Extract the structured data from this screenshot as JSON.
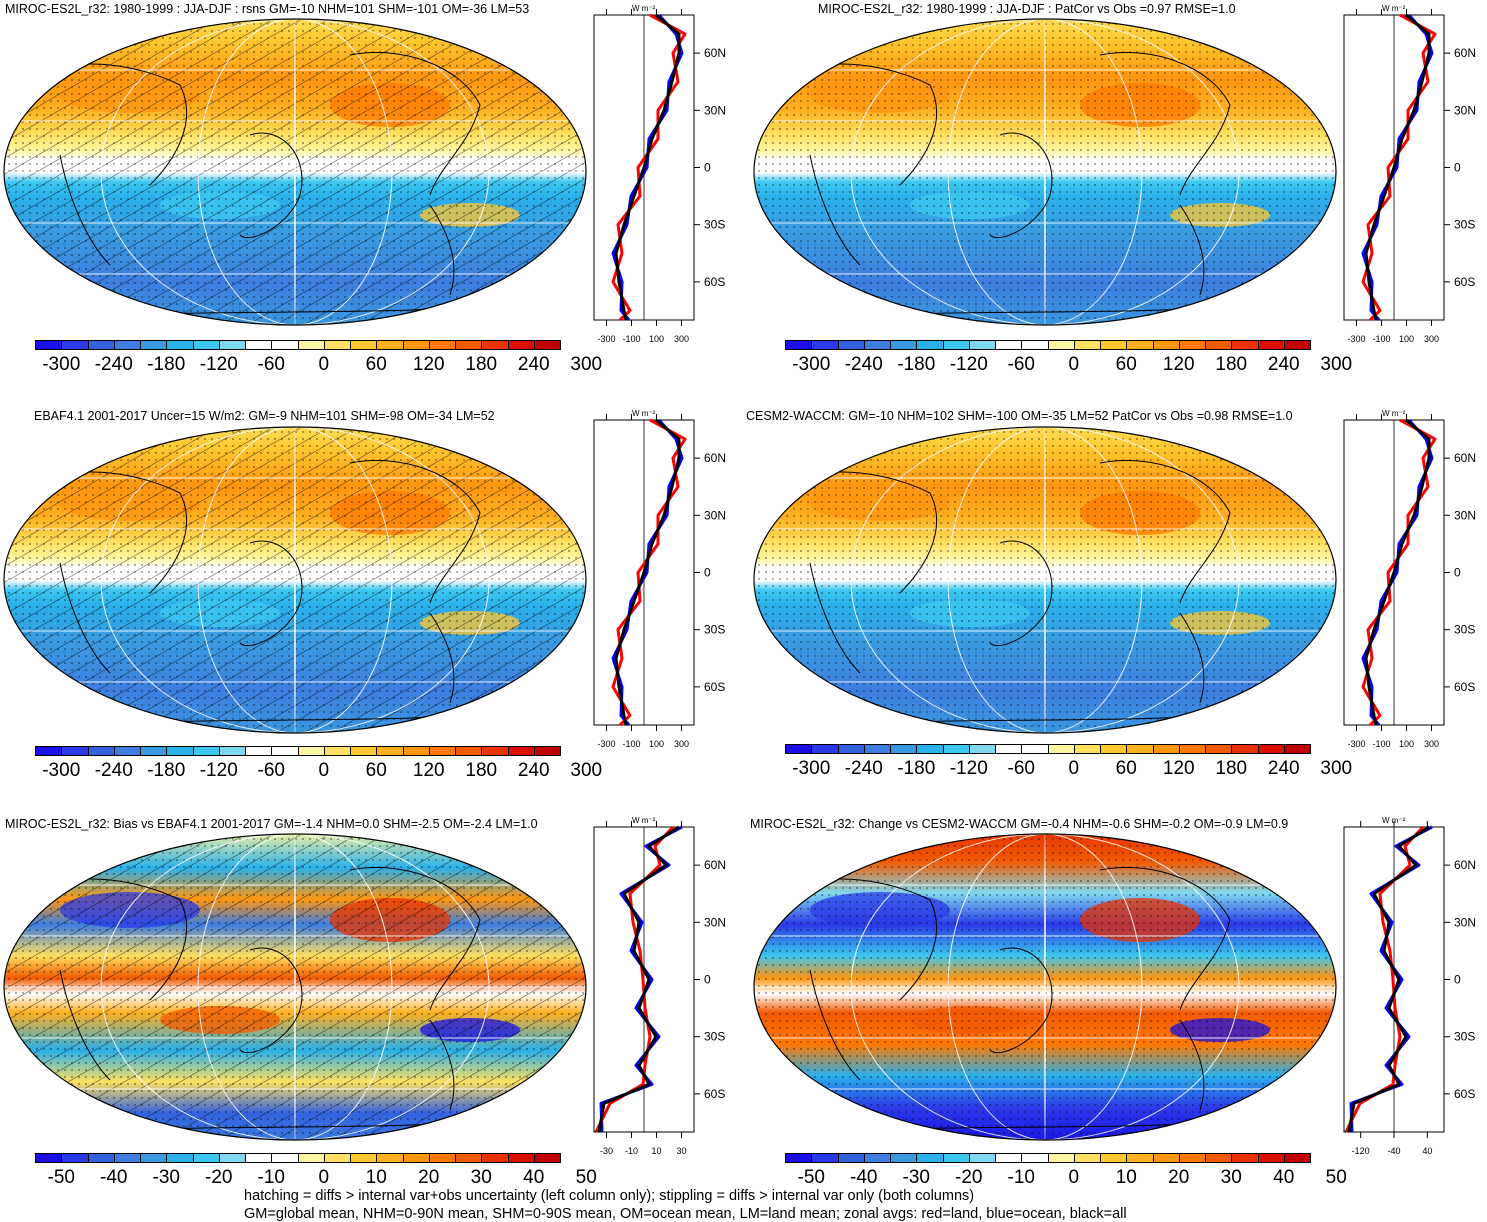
{
  "panels": [
    {
      "title": "MIROC-ES2L_r32: 1980-1999 : JJA-DJF : rsns GM=-10 NHM=101 SHM=-101 OM=-36 LM=53",
      "palette": "full",
      "colorbar_labels": [
        "-300",
        "-240",
        "-180",
        "-120",
        "-60",
        "0",
        "60",
        "120",
        "180",
        "240",
        "300"
      ],
      "zonal_xticks": [
        "-300",
        "-100",
        "100",
        "300"
      ],
      "zonal_yticks": [
        "60N",
        "30N",
        "0",
        "30S",
        "60S"
      ],
      "zonal_unit": "W m⁻²",
      "hatched": true
    },
    {
      "title": "MIROC-ES2L_r32: 1980-1999 : JJA-DJF : PatCor vs Obs =0.97 RMSE=1.0",
      "palette": "full",
      "colorbar_labels": [
        "-300",
        "-240",
        "-180",
        "-120",
        "-60",
        "0",
        "60",
        "120",
        "180",
        "240",
        "300"
      ],
      "zonal_xticks": [
        "-300",
        "-100",
        "100",
        "300"
      ],
      "zonal_yticks": [
        "60N",
        "30N",
        "0",
        "30S",
        "60S"
      ],
      "zonal_unit": "W m⁻²",
      "hatched": false
    },
    {
      "title": "EBAF4.1 2001-2017 Uncer=15 W/m2: GM=-9 NHM=101 SHM=-98 OM=-34 LM=52",
      "palette": "full",
      "colorbar_labels": [
        "-300",
        "-240",
        "-180",
        "-120",
        "-60",
        "0",
        "60",
        "120",
        "180",
        "240",
        "300"
      ],
      "zonal_xticks": [
        "-300",
        "-100",
        "100",
        "300"
      ],
      "zonal_yticks": [
        "60N",
        "30N",
        "0",
        "30S",
        "60S"
      ],
      "zonal_unit": "W m⁻²",
      "hatched": true
    },
    {
      "title": "CESM2-WACCM: GM=-10 NHM=102 SHM=-100 OM=-35 LM=52 PatCor vs Obs =0.98 RMSE=1.0",
      "palette": "full",
      "colorbar_labels": [
        "-300",
        "-240",
        "-180",
        "-120",
        "-60",
        "0",
        "60",
        "120",
        "180",
        "240",
        "300"
      ],
      "zonal_xticks": [
        "-300",
        "-100",
        "100",
        "300"
      ],
      "zonal_yticks": [
        "60N",
        "30N",
        "0",
        "30S",
        "60S"
      ],
      "zonal_unit": "W m⁻²",
      "hatched": false
    },
    {
      "title": "MIROC-ES2L_r32: Bias vs EBAF4.1 2001-2017 GM=-1.4 NHM=0.0 SHM=-2.5 OM=-2.4 LM=1.0",
      "palette": "diff",
      "colorbar_labels": [
        "-50",
        "-40",
        "-30",
        "-20",
        "-10",
        "0",
        "10",
        "20",
        "30",
        "40",
        "50"
      ],
      "zonal_xticks": [
        "-30",
        "-10",
        "10",
        "30"
      ],
      "zonal_yticks": [
        "60N",
        "30N",
        "0",
        "30S",
        "60S"
      ],
      "zonal_unit": "W m⁻²",
      "hatched": true
    },
    {
      "title": "MIROC-ES2L_r32: Change vs CESM2-WACCM GM=-0.4 NHM=-0.6 SHM=-0.2 OM=-0.9 LM=0.9",
      "palette": "diff",
      "colorbar_labels": [
        "-50",
        "-40",
        "-30",
        "-20",
        "-10",
        "0",
        "10",
        "20",
        "30",
        "40",
        "50"
      ],
      "zonal_xticks": [
        "-120",
        "-40",
        "40"
      ],
      "zonal_yticks": [
        "60N",
        "30N",
        "0",
        "30S",
        "60S"
      ],
      "zonal_unit": "W m⁻²",
      "hatched": false
    }
  ],
  "colors": {
    "palette": [
      "#1a10e6",
      "#2a3ae8",
      "#3262e0",
      "#3d7ee0",
      "#3a9ae0",
      "#2ab0ea",
      "#3cc8f0",
      "#80d8f0",
      "#ffffff",
      "#ffffff",
      "#fff6a0",
      "#ffe060",
      "#ffc830",
      "#ffb020",
      "#ff9610",
      "#ff7800",
      "#f25a00",
      "#e83200",
      "#d81000",
      "#c00000"
    ],
    "land": "red",
    "ocean": "blue",
    "all": "black"
  },
  "footer": {
    "line1": "hatching = diffs > internal var+obs uncertainty (left column only); stippling = diffs > internal var only (both columns)",
    "line2": "GM=global mean, NHM=0-90N mean, SHM=0-90S mean, OM=ocean mean, LM=land mean; zonal avgs: red=land, blue=ocean, black=all"
  }
}
